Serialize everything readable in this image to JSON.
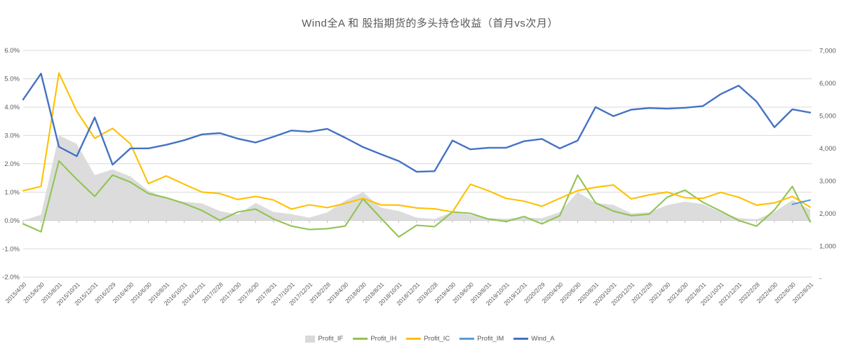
{
  "chart_data": {
    "type": "line",
    "title": "Wind全A 和 股指期货的多头持仓收益（首月vs次月）",
    "xlabel": "",
    "ylabel_left": "",
    "ylabel_right": "",
    "grid": true,
    "legend_position": "bottom",
    "x_labels": [
      "2015/4/30",
      "2015/6/30",
      "2015/8/31",
      "2015/10/31",
      "2015/12/31",
      "2016/2/29",
      "2016/4/30",
      "2016/6/30",
      "2016/8/31",
      "2016/10/31",
      "2016/12/31",
      "2017/2/28",
      "2017/4/30",
      "2017/6/30",
      "2017/8/31",
      "2017/10/31",
      "2017/12/31",
      "2018/2/28",
      "2018/4/30",
      "2018/6/30",
      "2018/8/31",
      "2018/10/31",
      "2018/12/31",
      "2019/2/28",
      "2019/4/30",
      "2019/6/30",
      "2019/8/31",
      "2019/10/31",
      "2019/12/31",
      "2020/2/29",
      "2020/4/30",
      "2020/6/30",
      "2020/8/31",
      "2020/10/31",
      "2020/12/31",
      "2021/2/28",
      "2021/4/30",
      "2021/6/30",
      "2021/8/31",
      "2021/10/31",
      "2021/12/31",
      "2022/2/28",
      "2022/4/30",
      "2022/6/30",
      "2022/8/31"
    ],
    "axes": {
      "left": {
        "min": -2,
        "max": 6,
        "unit": "%",
        "tick_values": [
          6,
          5,
          4,
          3,
          2,
          1,
          0,
          -1,
          -2
        ],
        "tick_labels": [
          "6.0%",
          "5.0%",
          "4.0%",
          "3.0%",
          "2.0%",
          "1.0%",
          "0.0%",
          "-1.0%",
          "-2.0%"
        ]
      },
      "right": {
        "min": 0,
        "max": 7000,
        "tick_values": [
          7000,
          6000,
          5000,
          4000,
          3000,
          2000,
          1000,
          0
        ],
        "tick_labels": [
          "7,000",
          "6,000",
          "5,000",
          "4,000",
          "3,000",
          "2,000",
          "1,000",
          "-"
        ]
      }
    },
    "series": [
      {
        "name": "Profit_IF",
        "type": "area",
        "axis": "left",
        "color": "#D9D9D9",
        "values": [
          0.0,
          0.2,
          3.0,
          2.7,
          1.6,
          1.8,
          1.55,
          1.05,
          0.78,
          0.66,
          0.6,
          0.33,
          0.2,
          0.62,
          0.3,
          0.22,
          0.1,
          0.28,
          0.7,
          1.0,
          0.45,
          0.33,
          0.1,
          0.05,
          0.3,
          0.2,
          0.08,
          0.06,
          0.1,
          0.08,
          0.29,
          1.0,
          0.62,
          0.55,
          0.25,
          0.29,
          0.54,
          0.66,
          0.58,
          0.29,
          0.08,
          0.04,
          0.3,
          0.72,
          0.38
        ]
      },
      {
        "name": "Profit_IH",
        "type": "line",
        "axis": "left",
        "color": "#92C353",
        "values": [
          -0.12,
          -0.4,
          2.1,
          1.45,
          0.85,
          1.6,
          1.35,
          0.95,
          0.8,
          0.6,
          0.35,
          0.0,
          0.3,
          0.4,
          0.05,
          -0.2,
          -0.32,
          -0.29,
          -0.2,
          0.76,
          0.08,
          -0.58,
          -0.17,
          -0.22,
          0.3,
          0.25,
          0.05,
          -0.04,
          0.14,
          -0.12,
          0.17,
          1.6,
          0.62,
          0.33,
          0.17,
          0.22,
          0.82,
          1.07,
          0.64,
          0.33,
          0.0,
          -0.2,
          0.37,
          1.2,
          -0.05
        ]
      },
      {
        "name": "Profit_IC",
        "type": "line",
        "axis": "left",
        "color": "#FFC000",
        "values": [
          1.05,
          1.2,
          5.2,
          3.85,
          2.9,
          3.25,
          2.7,
          1.3,
          1.57,
          1.28,
          1.0,
          0.95,
          0.74,
          0.85,
          0.72,
          0.4,
          0.55,
          0.45,
          0.6,
          0.78,
          0.55,
          0.54,
          0.44,
          0.41,
          0.3,
          1.28,
          1.05,
          0.78,
          0.68,
          0.5,
          0.78,
          1.05,
          1.17,
          1.25,
          0.76,
          0.9,
          1.0,
          0.8,
          0.78,
          0.99,
          0.82,
          0.54,
          0.62,
          0.85,
          0.47
        ]
      },
      {
        "name": "Profit_IM",
        "type": "line",
        "axis": "left",
        "color": "#5B9BD5",
        "values": [
          null,
          null,
          null,
          null,
          null,
          null,
          null,
          null,
          null,
          null,
          null,
          null,
          null,
          null,
          null,
          null,
          null,
          null,
          null,
          null,
          null,
          null,
          null,
          null,
          null,
          null,
          null,
          null,
          null,
          null,
          null,
          null,
          null,
          null,
          null,
          null,
          null,
          null,
          null,
          null,
          null,
          null,
          null,
          0.57,
          0.72
        ]
      },
      {
        "name": "Wind_A",
        "type": "line",
        "axis": "right",
        "color": "#4472C4",
        "values": [
          5500,
          6300,
          4050,
          3760,
          4950,
          3500,
          4000,
          4000,
          4110,
          4250,
          4430,
          4470,
          4300,
          4180,
          4360,
          4550,
          4510,
          4600,
          4330,
          4040,
          3820,
          3610,
          3280,
          3300,
          4240,
          3970,
          4020,
          4020,
          4220,
          4290,
          4000,
          4240,
          5270,
          4990,
          5190,
          5240,
          5220,
          5250,
          5300,
          5670,
          5930,
          5440,
          4650,
          5200,
          5100
        ]
      }
    ]
  },
  "colors": {
    "background": "#FFFFFF",
    "gridline": "#D9D9D9",
    "axis_line": "#BFBFBF",
    "tick_mark": "#BFBFBF",
    "axis_text": "#595959",
    "title_text": "#595959"
  }
}
